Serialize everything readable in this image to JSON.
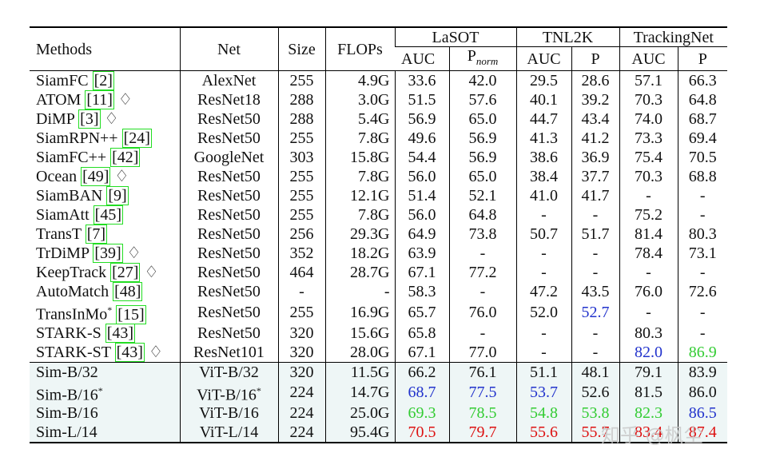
{
  "table": {
    "header": {
      "methods": "Methods",
      "net": "Net",
      "size": "Size",
      "flops": "FLOPs",
      "groups": [
        "LaSOT",
        "TNL2K",
        "TrackingNet"
      ],
      "sub": [
        "AUC",
        {
          "text": "P",
          "sub": "norm"
        },
        "AUC",
        "P",
        "AUC",
        "P"
      ]
    },
    "rows": [
      {
        "method": "SiamFC",
        "ref": "[2]",
        "net": "AlexNet",
        "values": [
          "255",
          "4.9G",
          "33.6",
          "42.0",
          "29.5",
          "28.6",
          "57.1",
          "66.3"
        ]
      },
      {
        "method": "ATOM",
        "ref": "[11]",
        "mark": "♢",
        "net": "ResNet18",
        "values": [
          "288",
          "3.0G",
          "51.5",
          "57.6",
          "40.1",
          "39.2",
          "70.3",
          "64.8"
        ]
      },
      {
        "method": "DiMP",
        "ref": "[3]",
        "mark": "♢",
        "net": "ResNet50",
        "values": [
          "288",
          "5.4G",
          "56.9",
          "65.0",
          "44.7",
          "43.4",
          "74.0",
          "68.7"
        ]
      },
      {
        "method": "SiamRPN++",
        "ref": "[24]",
        "net": "ResNet50",
        "values": [
          "255",
          "7.8G",
          "49.6",
          "56.9",
          "41.3",
          "41.2",
          "73.3",
          "69.4"
        ]
      },
      {
        "method": "SiamFC++",
        "ref": "[42]",
        "net": "GoogleNet",
        "values": [
          "303",
          "15.8G",
          "54.4",
          "56.9",
          "38.6",
          "36.9",
          "75.4",
          "70.5"
        ]
      },
      {
        "method": "Ocean",
        "ref": "[49]",
        "mark": "♢",
        "net": "ResNet50",
        "values": [
          "255",
          "7.8G",
          "56.0",
          "65.0",
          "38.4",
          "37.7",
          "70.3",
          "68.8"
        ]
      },
      {
        "method": "SiamBAN",
        "ref": "[9]",
        "net": "ResNet50",
        "values": [
          "255",
          "12.1G",
          "51.4",
          "52.1",
          "41.0",
          "41.7",
          "-",
          "-"
        ]
      },
      {
        "method": "SiamAtt",
        "ref": "[45]",
        "net": "ResNet50",
        "values": [
          "255",
          "7.8G",
          "56.0",
          "64.8",
          "-",
          "-",
          "75.2",
          "-"
        ]
      },
      {
        "method": "TransT",
        "ref": "[7]",
        "net": "ResNet50",
        "values": [
          "256",
          "29.3G",
          "64.9",
          "73.8",
          "50.7",
          "51.7",
          "81.4",
          "80.3"
        ]
      },
      {
        "method": "TrDiMP",
        "ref": "[39]",
        "mark": "♢",
        "net": "ResNet50",
        "values": [
          "352",
          "18.2G",
          "63.9",
          "-",
          "-",
          "-",
          "78.4",
          "73.1"
        ]
      },
      {
        "method": "KeepTrack",
        "ref": "[27]",
        "mark": "♢",
        "net": "ResNet50",
        "values": [
          "464",
          "28.7G",
          "67.1",
          "77.2",
          "-",
          "-",
          "-",
          "-"
        ]
      },
      {
        "method": "AutoMatch",
        "ref": "[48]",
        "net": "ResNet50",
        "values": [
          "-",
          "-",
          "58.3",
          "-",
          "47.2",
          "43.5",
          "76.0",
          "72.6"
        ]
      },
      {
        "method": "TransInMo",
        "sup": "*",
        "ref": "[15]",
        "net": "ResNet50",
        "values": [
          "255",
          "16.9G",
          "65.7",
          "76.0",
          "52.0",
          "52.7",
          "-",
          "-"
        ],
        "colors": {
          "5": "#2233cc"
        }
      },
      {
        "method": "STARK-S",
        "ref": "[43]",
        "net": "ResNet50",
        "values": [
          "320",
          "15.6G",
          "65.8",
          "-",
          "-",
          "-",
          "80.3",
          "-"
        ]
      },
      {
        "method": "STARK-ST",
        "ref": "[43]",
        "mark": "♢",
        "net": "ResNet101",
        "values": [
          "320",
          "28.0G",
          "67.1",
          "77.0",
          "-",
          "-",
          "82.0",
          "86.9"
        ],
        "colors": {
          "6": "#2233cc",
          "7": "#33cc33"
        }
      },
      {
        "method": "Sim-B/32",
        "net": "ViT-B/32",
        "group": 2,
        "values": [
          "320",
          "11.5G",
          "66.2",
          "76.1",
          "51.1",
          "48.1",
          "79.1",
          "83.9"
        ]
      },
      {
        "method": "Sim-B/16",
        "sup": "*",
        "net": "ViT-B/16",
        "net_sup": "*",
        "group": 2,
        "values": [
          "224",
          "14.7G",
          "68.7",
          "77.5",
          "53.7",
          "52.6",
          "81.5",
          "86.0"
        ],
        "colors": {
          "2": "#2233cc",
          "3": "#2233cc",
          "4": "#2233cc"
        }
      },
      {
        "method": "Sim-B/16",
        "net": "ViT-B/16",
        "group": 2,
        "values": [
          "224",
          "25.0G",
          "69.3",
          "78.5",
          "54.8",
          "53.8",
          "82.3",
          "86.5"
        ],
        "colors": {
          "2": "#33cc33",
          "3": "#33cc33",
          "4": "#33cc33",
          "5": "#33cc33",
          "6": "#33cc33",
          "7": "#2233cc"
        }
      },
      {
        "method": "Sim-L/14",
        "net": "ViT-L/14",
        "group": 2,
        "values": [
          "224",
          "95.4G",
          "70.5",
          "79.7",
          "55.6",
          "55.7",
          "83.4",
          "87.4"
        ],
        "colors": {
          "2": "#dd1111",
          "3": "#dd1111",
          "4": "#dd1111",
          "5": "#dd1111",
          "6": "#dd1111",
          "7": "#dd1111"
        }
      }
    ]
  },
  "watermark": "知乎 @枫尘"
}
